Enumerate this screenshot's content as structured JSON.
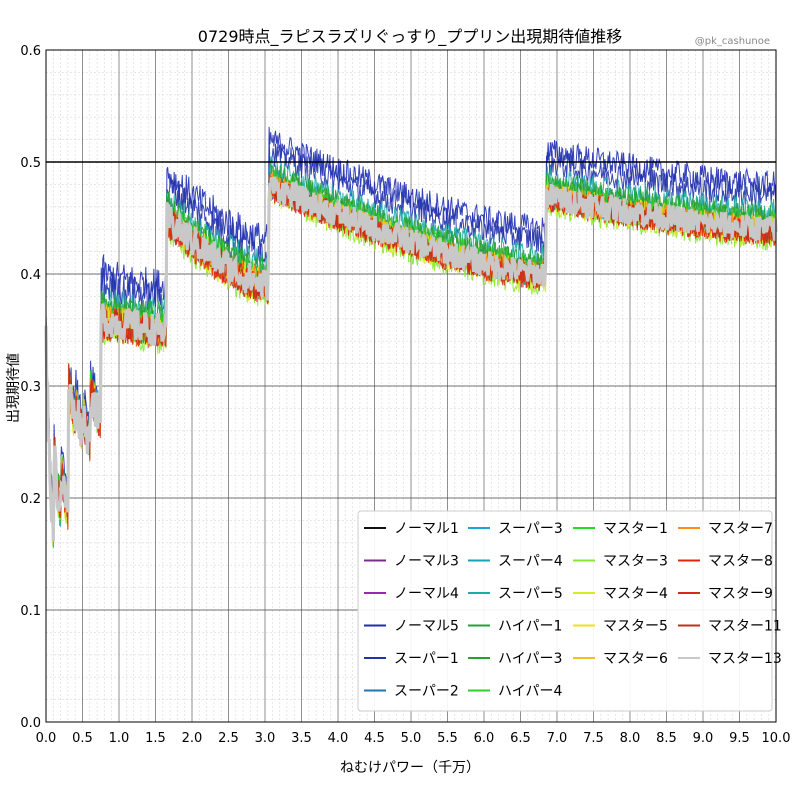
{
  "chart_data": {
    "type": "line",
    "title": "0729時点_ラピスラズリぐっすり_ププリン出現期待値推移",
    "watermark": "@pk_cashunoe",
    "xlabel": "ねむけパワー（千万）",
    "ylabel": "出現期待値",
    "xlim": [
      0,
      10
    ],
    "ylim": [
      0,
      0.6
    ],
    "xticks": [
      "0.0",
      "0.5",
      "1.0",
      "1.5",
      "2.0",
      "2.5",
      "3.0",
      "3.5",
      "4.0",
      "4.5",
      "5.0",
      "5.5",
      "6.0",
      "6.5",
      "7.0",
      "7.5",
      "8.0",
      "8.5",
      "9.0",
      "9.5",
      "10.0"
    ],
    "yticks": [
      "0.0",
      "0.1",
      "0.2",
      "0.3",
      "0.4",
      "0.5",
      "0.6"
    ],
    "grid": true,
    "reference_line": 0.5,
    "legend_position": "lower-right",
    "rank_boundaries": [
      0,
      0.1,
      0.2,
      0.3,
      0.4,
      0.5,
      0.6,
      0.75,
      1.65,
      3.05,
      6.85,
      10.0
    ],
    "segments": [
      {
        "x_start": 0.0,
        "x_end": 0.1,
        "y_start": 0.34,
        "y_end": 0.17
      },
      {
        "x_start": 0.1,
        "x_end": 0.2,
        "y_start": 0.25,
        "y_end": 0.19
      },
      {
        "x_start": 0.2,
        "x_end": 0.3,
        "y_start": 0.23,
        "y_end": 0.19
      },
      {
        "x_start": 0.3,
        "x_end": 0.4,
        "y_start": 0.31,
        "y_end": 0.27
      },
      {
        "x_start": 0.4,
        "x_end": 0.5,
        "y_start": 0.29,
        "y_end": 0.26
      },
      {
        "x_start": 0.5,
        "x_end": 0.6,
        "y_start": 0.28,
        "y_end": 0.25
      },
      {
        "x_start": 0.6,
        "x_end": 0.75,
        "y_start": 0.3,
        "y_end": 0.27
      },
      {
        "x_start": 0.75,
        "x_end": 1.65,
        "y_start": 0.36,
        "y_end": 0.35
      },
      {
        "x_start": 1.65,
        "x_end": 3.05,
        "y_start": 0.45,
        "y_end": 0.39
      },
      {
        "x_start": 3.05,
        "x_end": 6.85,
        "y_start": 0.48,
        "y_end": 0.4
      },
      {
        "x_start": 6.85,
        "x_end": 10.0,
        "y_start": 0.47,
        "y_end": 0.44
      }
    ],
    "series": [
      {
        "name": "ノーマル1",
        "color": "#111111",
        "offset": 0.0
      },
      {
        "name": "ノーマル3",
        "color": "#7b2d8b",
        "offset": 0.0
      },
      {
        "name": "ノーマル4",
        "color": "#9c27b0",
        "offset": 0.0
      },
      {
        "name": "ノーマル5",
        "color": "#1f2fb4",
        "offset": 0.04
      },
      {
        "name": "スーパー1",
        "color": "#2233aa",
        "offset": 0.03
      },
      {
        "name": "スーパー2",
        "color": "#1f77b4",
        "offset": 0.0
      },
      {
        "name": "スーパー3",
        "color": "#1ea0d8",
        "offset": 0.0
      },
      {
        "name": "スーパー4",
        "color": "#17a2b8",
        "offset": 0.0
      },
      {
        "name": "スーパー5",
        "color": "#1eaaaa",
        "offset": 0.015
      },
      {
        "name": "ハイパー1",
        "color": "#21a33a",
        "offset": 0.01
      },
      {
        "name": "ハイパー3",
        "color": "#2ca02c",
        "offset": 0.008
      },
      {
        "name": "ハイパー4",
        "color": "#33cc33",
        "offset": 0.005
      },
      {
        "name": "マスター1",
        "color": "#22dd22",
        "offset": 0.0
      },
      {
        "name": "マスター3",
        "color": "#88e830",
        "offset": -0.008
      },
      {
        "name": "マスター4",
        "color": "#d4ee22",
        "offset": -0.005
      },
      {
        "name": "マスター5",
        "color": "#f0e020",
        "offset": 0.0
      },
      {
        "name": "マスター6",
        "color": "#f2c020",
        "offset": 0.0
      },
      {
        "name": "マスター7",
        "color": "#ff8c1a",
        "offset": 0.0
      },
      {
        "name": "マスター8",
        "color": "#e82010",
        "offset": -0.003
      },
      {
        "name": "マスター9",
        "color": "#d42a18",
        "offset": -0.004
      },
      {
        "name": "マスター11",
        "color": "#c0301c",
        "offset": -0.002
      },
      {
        "name": "マスター13",
        "color": "#c8c8c8",
        "offset": 0.0
      }
    ]
  }
}
